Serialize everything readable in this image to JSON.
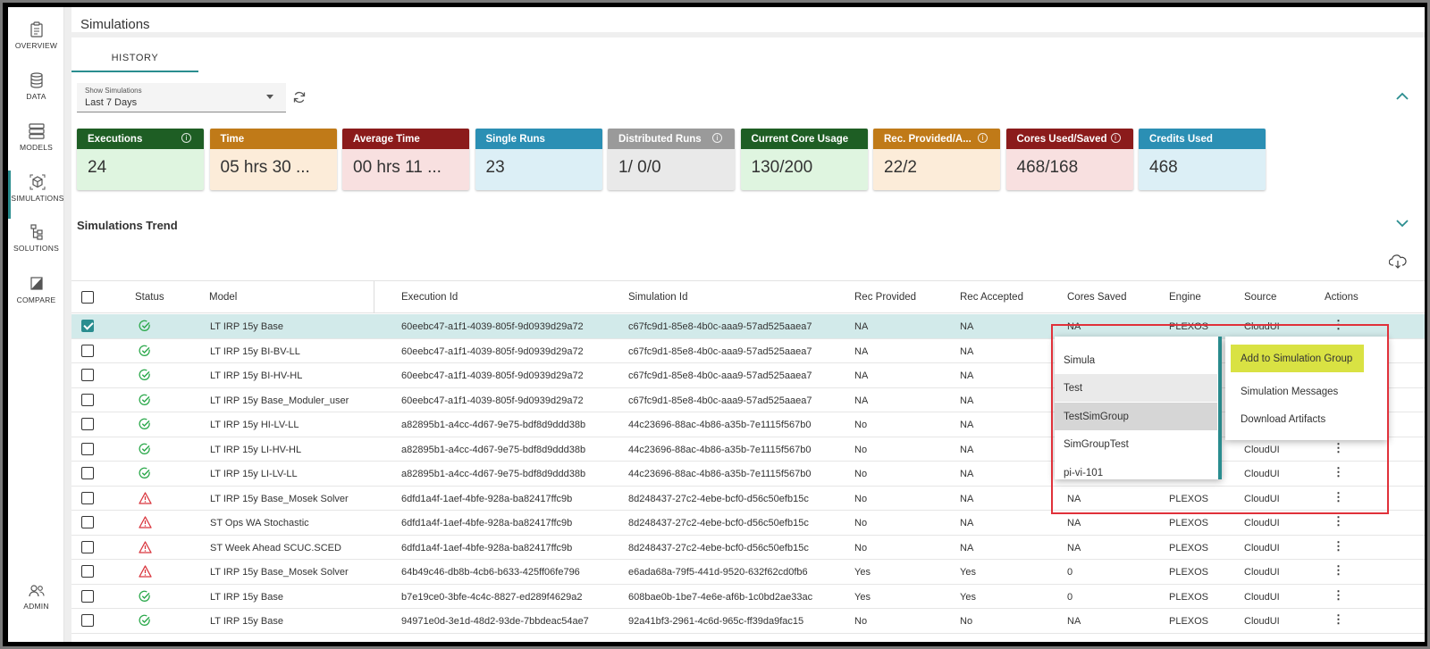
{
  "page": {
    "title": "Simulations",
    "tab": "HISTORY"
  },
  "sidebar": {
    "items": [
      {
        "label": "OVERVIEW",
        "icon": "clipboard-icon"
      },
      {
        "label": "DATA",
        "icon": "database-icon"
      },
      {
        "label": "MODELS",
        "icon": "server-icon"
      },
      {
        "label": "SIMULATIONS",
        "icon": "cube-icon"
      },
      {
        "label": "SOLUTIONS",
        "icon": "hierarchy-icon"
      },
      {
        "label": "COMPARE",
        "icon": "compare-icon"
      },
      {
        "label": "ADMIN",
        "icon": "users-icon"
      }
    ]
  },
  "filter": {
    "label": "Show Simulations",
    "value": "Last 7 Days"
  },
  "cards": [
    {
      "title": "Executions",
      "value": "24",
      "info": true,
      "header_color": "#1e5e24",
      "body_color": "#dff5e0"
    },
    {
      "title": "Time",
      "value": "05 hrs 30 ...",
      "info": false,
      "header_color": "#c07a18",
      "body_color": "#fcecd9"
    },
    {
      "title": "Average Time",
      "value": "00 hrs 11 ...",
      "info": false,
      "header_color": "#8b1b1b",
      "body_color": "#f8e0e0"
    },
    {
      "title": "Single Runs",
      "value": "23",
      "info": false,
      "header_color": "#2b8fb4",
      "body_color": "#dceff6"
    },
    {
      "title": "Distributed Runs",
      "value": "1/ 0/0",
      "info": true,
      "header_color": "#9a9a9a",
      "body_color": "#e9e9e9"
    },
    {
      "title": "Current Core Usage",
      "value": "130/200",
      "info": false,
      "header_color": "#1e5e24",
      "body_color": "#dff5e0"
    },
    {
      "title": "Rec. Provided/A...",
      "value": "22/2",
      "info": true,
      "header_color": "#c07a18",
      "body_color": "#fcecd9"
    },
    {
      "title": "Cores Used/Saved",
      "value": "468/168",
      "info": true,
      "header_color": "#8b1b1b",
      "body_color": "#f8e0e0"
    },
    {
      "title": "Credits Used",
      "value": "468",
      "info": false,
      "header_color": "#2b8fb4",
      "body_color": "#dceff6"
    }
  ],
  "trend": {
    "title": "Simulations Trend"
  },
  "table": {
    "columns": [
      "Status",
      "Model",
      "Execution Id",
      "Simulation Id",
      "Rec Provided",
      "Rec Accepted",
      "Cores Saved",
      "Engine",
      "Source",
      "Actions"
    ],
    "rows": [
      {
        "status": "ok",
        "model": "LT IRP 15y Base",
        "exec": "60eebc47-a1f1-4039-805f-9d0939d29a72",
        "sim": "c67fc9d1-85e8-4b0c-aaa9-57ad525aaea7",
        "rp": "NA",
        "ra": "NA",
        "cs": "NA",
        "engine": "PLEXOS",
        "source": "CloudUI",
        "checked": true
      },
      {
        "status": "ok",
        "model": "LT IRP 15y BI-BV-LL",
        "exec": "60eebc47-a1f1-4039-805f-9d0939d29a72",
        "sim": "c67fc9d1-85e8-4b0c-aaa9-57ad525aaea7",
        "rp": "NA",
        "ra": "NA",
        "cs": "",
        "engine": "",
        "source": "",
        "checked": false
      },
      {
        "status": "ok",
        "model": "LT IRP 15y BI-HV-HL",
        "exec": "60eebc47-a1f1-4039-805f-9d0939d29a72",
        "sim": "c67fc9d1-85e8-4b0c-aaa9-57ad525aaea7",
        "rp": "NA",
        "ra": "NA",
        "cs": "",
        "engine": "",
        "source": "",
        "checked": false
      },
      {
        "status": "ok",
        "model": "LT IRP 15y Base_Moduler_user",
        "exec": "60eebc47-a1f1-4039-805f-9d0939d29a72",
        "sim": "c67fc9d1-85e8-4b0c-aaa9-57ad525aaea7",
        "rp": "NA",
        "ra": "NA",
        "cs": "",
        "engine": "",
        "source": "",
        "checked": false
      },
      {
        "status": "ok",
        "model": "LT IRP 15y HI-LV-LL",
        "exec": "a82895b1-a4cc-4d67-9e75-bdf8d9ddd38b",
        "sim": "44c23696-88ac-4b86-a35b-7e1115f567b0",
        "rp": "No",
        "ra": "NA",
        "cs": "",
        "engine": "",
        "source": "",
        "checked": false
      },
      {
        "status": "ok",
        "model": "LT IRP 15y LI-HV-HL",
        "exec": "a82895b1-a4cc-4d67-9e75-bdf8d9ddd38b",
        "sim": "44c23696-88ac-4b86-a35b-7e1115f567b0",
        "rp": "No",
        "ra": "NA",
        "cs": "",
        "engine": "",
        "source": "CloudUI",
        "checked": false
      },
      {
        "status": "ok",
        "model": "LT IRP 15y LI-LV-LL",
        "exec": "a82895b1-a4cc-4d67-9e75-bdf8d9ddd38b",
        "sim": "44c23696-88ac-4b86-a35b-7e1115f567b0",
        "rp": "No",
        "ra": "NA",
        "cs": "",
        "engine": "",
        "source": "CloudUI",
        "checked": false
      },
      {
        "status": "warn",
        "model": "LT IRP 15y Base_Mosek Solver",
        "exec": "6dfd1a4f-1aef-4bfe-928a-ba82417ffc9b",
        "sim": "8d248437-27c2-4ebe-bcf0-d56c50efb15c",
        "rp": "No",
        "ra": "NA",
        "cs": "NA",
        "engine": "PLEXOS",
        "source": "CloudUI",
        "checked": false
      },
      {
        "status": "warn",
        "model": "ST Ops WA Stochastic",
        "exec": "6dfd1a4f-1aef-4bfe-928a-ba82417ffc9b",
        "sim": "8d248437-27c2-4ebe-bcf0-d56c50efb15c",
        "rp": "No",
        "ra": "NA",
        "cs": "NA",
        "engine": "PLEXOS",
        "source": "CloudUI",
        "checked": false
      },
      {
        "status": "warn",
        "model": "ST Week Ahead SCUC.SCED",
        "exec": "6dfd1a4f-1aef-4bfe-928a-ba82417ffc9b",
        "sim": "8d248437-27c2-4ebe-bcf0-d56c50efb15c",
        "rp": "No",
        "ra": "NA",
        "cs": "NA",
        "engine": "PLEXOS",
        "source": "CloudUI",
        "checked": false
      },
      {
        "status": "warn",
        "model": "LT IRP 15y Base_Mosek Solver",
        "exec": "64b49c46-db8b-4cb6-b633-425ff06fe796",
        "sim": "e6ada68a-79f5-441d-9520-632f62cd0fb6",
        "rp": "Yes",
        "ra": "Yes",
        "cs": "0",
        "engine": "PLEXOS",
        "source": "CloudUI",
        "checked": false
      },
      {
        "status": "ok",
        "model": "LT IRP 15y Base",
        "exec": "b7e19ce0-3bfe-4c4c-8827-ed289f4629a2",
        "sim": "608bae0b-1be7-4e6e-af6b-1c0bd2ae33ac",
        "rp": "Yes",
        "ra": "Yes",
        "cs": "0",
        "engine": "PLEXOS",
        "source": "CloudUI",
        "checked": false
      },
      {
        "status": "ok",
        "model": "LT IRP 15y Base",
        "exec": "94971e0d-3e1d-48d2-93de-7bbdeac54ae7",
        "sim": "92a41bf3-2961-4c6d-965c-ff39da9fac15",
        "rp": "No",
        "ra": "No",
        "cs": "NA",
        "engine": "PLEXOS",
        "source": "CloudUI",
        "checked": false
      }
    ]
  },
  "group_menu": {
    "items": [
      "Simula",
      "Test",
      "TestSimGroup",
      "SimGroupTest",
      "pi-vi-101"
    ]
  },
  "actions_menu": {
    "items": [
      "Add to Simulation Group",
      "Simulation Messages",
      "Download Artifacts"
    ]
  },
  "colors": {
    "accent": "#2a8d8f",
    "highlight": "#d9e243",
    "annotation": "#e0313a",
    "ok": "#2aa84a",
    "warn": "#d9363e"
  }
}
